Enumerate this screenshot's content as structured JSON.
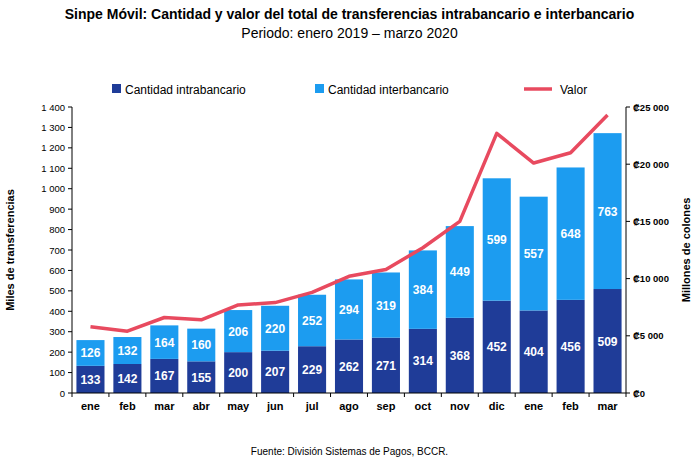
{
  "chart_data": {
    "type": "bar",
    "title": "Sinpe Móvil: Cantidad y valor del total de transferencias intrabancario e interbancario",
    "subtitle": "Periodo: enero 2019 – marzo 2020",
    "ylabel": "Miles de transferencias",
    "y2label": "Millones de colones",
    "annotations": [
      "Fuente: División Sistemas de Pagos, BCCR."
    ],
    "categories": [
      "ene",
      "feb",
      "mar",
      "abr",
      "may",
      "jun",
      "jul",
      "ago",
      "sep",
      "oct",
      "nov",
      "dic",
      "ene",
      "feb",
      "mar"
    ],
    "stacked": true,
    "legend": "top",
    "grid": false,
    "ylim": [
      0,
      1400
    ],
    "yticks": [
      0,
      100,
      200,
      300,
      400,
      500,
      600,
      700,
      800,
      900,
      {
        "value": 1000,
        "label": "1 000"
      },
      {
        "value": 1100,
        "label": "1 100"
      },
      {
        "value": 1200,
        "label": "1 200"
      },
      {
        "value": 1300,
        "label": "1 300"
      },
      {
        "value": 1400,
        "label": "1 400"
      }
    ],
    "y2lim": [
      0,
      25000
    ],
    "y2ticks": [
      {
        "value": 0,
        "label": "₡0"
      },
      {
        "value": 5000,
        "label": "₡5 000"
      },
      {
        "value": 10000,
        "label": "₡10 000"
      },
      {
        "value": 15000,
        "label": "₡15 000"
      },
      {
        "value": 20000,
        "label": "₡20 000"
      },
      {
        "value": 25000,
        "label": "₡25 000"
      }
    ],
    "series": [
      {
        "name": "Cantidad intrabancario",
        "type": "bar",
        "color": "#1f3c98",
        "data_labels": true,
        "values": [
          133,
          142,
          167,
          155,
          200,
          207,
          229,
          262,
          271,
          314,
          368,
          452,
          404,
          456,
          509
        ]
      },
      {
        "name": "Cantidad interbancario",
        "type": "bar",
        "color": "#1c9cf0",
        "data_labels": true,
        "values": [
          126,
          132,
          164,
          160,
          206,
          220,
          252,
          294,
          319,
          384,
          449,
          599,
          557,
          648,
          763
        ]
      },
      {
        "name": "Valor",
        "type": "line",
        "axis": "y2",
        "color": "#e84a5f",
        "line_style": "solid",
        "data_labels": false,
        "values": [
          5800,
          5400,
          6600,
          6400,
          7700,
          7900,
          8800,
          10200,
          10800,
          12700,
          15000,
          22700,
          20100,
          21000,
          24300
        ]
      }
    ]
  }
}
